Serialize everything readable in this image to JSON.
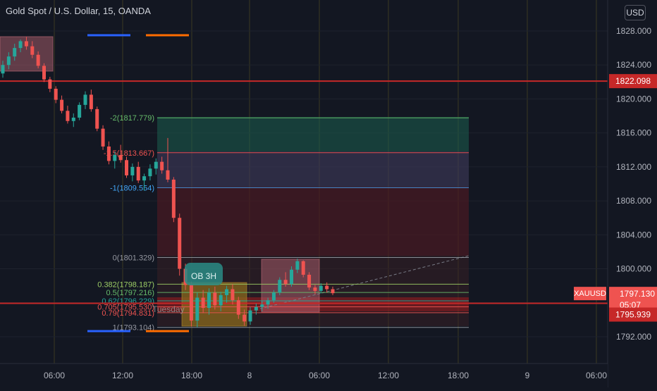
{
  "header": {
    "title": "Gold Spot / U.S. Dollar, 15, OANDA",
    "currency_button": "USD"
  },
  "colors": {
    "background": "#131722",
    "grid": "#3b3a22",
    "up_candle": "#26a69a",
    "down_candle": "#ef5350",
    "horizontal_line": "#c62828",
    "ma_blue": "#2962ff",
    "ma_orange": "#ff6d00"
  },
  "chart_data": {
    "type": "candlestick",
    "symbol": "XAUUSD",
    "y_axis": {
      "ticks": [
        1828,
        1824,
        1820,
        1816,
        1812,
        1808,
        1804,
        1800,
        1796,
        1792
      ],
      "tick_labels": [
        "1828.000",
        "1824.000",
        "1820.000",
        "1816.000",
        "1812.000",
        "1808.000",
        "1804.000",
        "1800.000",
        "1796.000",
        "1792.000"
      ],
      "range": [
        1791,
        1829.5
      ]
    },
    "x_axis": {
      "tick_labels": [
        "06:00",
        "12:00",
        "18:00",
        "8",
        "06:00",
        "12:00",
        "18:00",
        "9",
        "06:00"
      ]
    },
    "price_tags": [
      {
        "label": "1822.098",
        "value": 1822.098,
        "color": "#c62828"
      },
      {
        "label": "XAUUSD",
        "value": 1797.13,
        "color": "#ef5350"
      },
      {
        "label": "1797.130",
        "value": 1797.13,
        "color": "#ef5350"
      },
      {
        "label": "05:07",
        "value": 1796.0,
        "color": "#ef5350"
      },
      {
        "label": "1795.939",
        "value": 1795.939,
        "color": "#c62828"
      }
    ],
    "horizontal_lines": [
      1822.098,
      1795.939
    ],
    "fib_levels": [
      {
        "label": "-2(1817.779)",
        "value": 1817.779,
        "color": "#66bb6a"
      },
      {
        "label": "-1.5(1813.667)",
        "value": 1813.667,
        "color": "#ef5350"
      },
      {
        "label": "-1(1809.554)",
        "value": 1809.554,
        "color": "#42a5f5"
      },
      {
        "label": "0(1801.329)",
        "value": 1801.329,
        "color": "#9598a1"
      },
      {
        "label": "0.382(1798.187)",
        "value": 1798.187,
        "color": "#9ccc65"
      },
      {
        "label": "0.5(1797.216)",
        "value": 1797.216,
        "color": "#66bb6a"
      },
      {
        "label": "0.62(1796.229)",
        "value": 1796.229,
        "color": "#26a69a"
      },
      {
        "label": "0.705(1795.530)",
        "value": 1795.53,
        "color": "#ef5350"
      },
      {
        "label": "0.79(1794.831)",
        "value": 1794.831,
        "color": "#ef5350"
      },
      {
        "label": "1(1793.104)",
        "value": 1793.104,
        "color": "#9598a1"
      }
    ],
    "annotations": [
      {
        "label": "OB 3H"
      },
      {
        "label": "Tuesday"
      }
    ],
    "candles": [
      [
        1823.0,
        1824.5,
        1822.5,
        1824.0
      ],
      [
        1824.0,
        1825.5,
        1823.5,
        1825.0
      ],
      [
        1825.0,
        1826.5,
        1824.5,
        1826.0
      ],
      [
        1826.0,
        1827.0,
        1825.5,
        1826.8
      ],
      [
        1826.8,
        1827.3,
        1825.8,
        1826.2
      ],
      [
        1826.2,
        1826.8,
        1824.8,
        1825.2
      ],
      [
        1825.2,
        1825.6,
        1823.6,
        1823.9
      ],
      [
        1823.9,
        1824.2,
        1822.0,
        1822.3
      ],
      [
        1822.3,
        1822.6,
        1820.8,
        1821.2
      ],
      [
        1821.2,
        1821.5,
        1819.5,
        1819.9
      ],
      [
        1819.9,
        1820.4,
        1818.3,
        1818.6
      ],
      [
        1818.6,
        1819.2,
        1817.1,
        1817.4
      ],
      [
        1817.4,
        1818.3,
        1816.7,
        1817.8
      ],
      [
        1817.8,
        1819.6,
        1817.5,
        1819.3
      ],
      [
        1819.3,
        1820.9,
        1818.8,
        1820.5
      ],
      [
        1820.5,
        1821.1,
        1818.5,
        1818.8
      ],
      [
        1818.8,
        1819.1,
        1816.2,
        1816.5
      ],
      [
        1816.5,
        1816.9,
        1814.0,
        1814.4
      ],
      [
        1814.4,
        1815.0,
        1812.3,
        1812.7
      ],
      [
        1812.7,
        1813.8,
        1811.8,
        1813.4
      ],
      [
        1813.4,
        1814.6,
        1812.5,
        1812.8
      ],
      [
        1812.8,
        1813.2,
        1810.7,
        1811.0
      ],
      [
        1811.0,
        1812.4,
        1810.3,
        1812.0
      ],
      [
        1812.0,
        1812.6,
        1810.1,
        1810.4
      ],
      [
        1810.4,
        1811.2,
        1809.2,
        1810.9
      ],
      [
        1810.9,
        1812.3,
        1810.4,
        1811.8
      ],
      [
        1811.8,
        1813.0,
        1811.1,
        1812.6
      ],
      [
        1812.6,
        1813.2,
        1811.2,
        1811.6
      ],
      [
        1811.6,
        1815.4,
        1810.2,
        1810.5
      ],
      [
        1810.5,
        1810.8,
        1805.5,
        1806.0
      ],
      [
        1806.0,
        1806.5,
        1799.2,
        1800.0
      ],
      [
        1800.0,
        1800.6,
        1797.5,
        1798.1
      ],
      [
        1798.1,
        1798.5,
        1793.2,
        1793.9
      ],
      [
        1793.9,
        1797.2,
        1793.1,
        1796.6
      ],
      [
        1796.6,
        1797.5,
        1794.8,
        1795.4
      ],
      [
        1795.4,
        1797.7,
        1794.6,
        1797.2
      ],
      [
        1797.2,
        1797.9,
        1795.2,
        1795.7
      ],
      [
        1795.7,
        1797.3,
        1795.0,
        1796.9
      ],
      [
        1796.9,
        1798.0,
        1796.0,
        1797.6
      ],
      [
        1797.6,
        1798.2,
        1795.8,
        1796.3
      ],
      [
        1796.3,
        1796.7,
        1794.1,
        1794.6
      ],
      [
        1794.6,
        1795.2,
        1793.3,
        1793.8
      ],
      [
        1793.8,
        1795.5,
        1793.4,
        1795.1
      ],
      [
        1795.1,
        1795.9,
        1794.6,
        1795.5
      ],
      [
        1795.5,
        1796.2,
        1795.0,
        1795.8
      ],
      [
        1795.8,
        1796.6,
        1795.3,
        1796.3
      ],
      [
        1796.3,
        1797.5,
        1796.0,
        1797.2
      ],
      [
        1797.2,
        1799.0,
        1796.9,
        1798.7
      ],
      [
        1798.7,
        1799.6,
        1797.9,
        1798.2
      ],
      [
        1798.2,
        1800.3,
        1797.9,
        1799.9
      ],
      [
        1799.9,
        1801.2,
        1799.5,
        1800.9
      ],
      [
        1800.9,
        1801.0,
        1799.0,
        1799.3
      ],
      [
        1799.3,
        1799.6,
        1797.5,
        1797.8
      ],
      [
        1797.8,
        1798.1,
        1797.0,
        1797.4
      ],
      [
        1797.4,
        1798.3,
        1797.1,
        1798.0
      ],
      [
        1798.0,
        1798.4,
        1797.2,
        1797.6
      ],
      [
        1797.6,
        1797.9,
        1796.9,
        1797.13
      ]
    ],
    "grid": true
  }
}
